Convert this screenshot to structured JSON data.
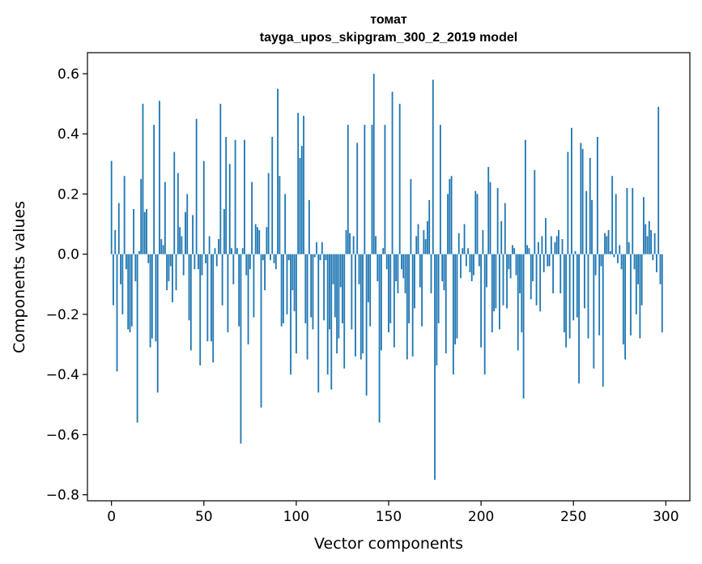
{
  "chart_data": {
    "type": "bar",
    "title": "томат",
    "subtitle": "tayga_upos_skipgram_300_2_2019 model",
    "xlabel": "Vector components",
    "ylabel": "Components values",
    "xlim": [
      -13,
      313
    ],
    "ylim": [
      -0.82,
      0.67
    ],
    "xticks": [
      0,
      50,
      100,
      150,
      200,
      250,
      300
    ],
    "xtick_labels": [
      "0",
      "50",
      "100",
      "150",
      "200",
      "250",
      "300"
    ],
    "yticks": [
      -0.8,
      -0.6,
      -0.4,
      -0.2,
      0.0,
      0.2,
      0.4,
      0.6
    ],
    "ytick_labels": [
      "−0.8",
      "−0.6",
      "−0.4",
      "−0.2",
      "0.0",
      "0.2",
      "0.4",
      "0.6"
    ],
    "bar_color": "#1f77b4",
    "grid": false,
    "legend": "none",
    "values": [
      0.31,
      -0.17,
      0.08,
      -0.39,
      0.17,
      -0.1,
      -0.2,
      0.26,
      -0.05,
      -0.25,
      -0.26,
      -0.24,
      0.15,
      -0.09,
      -0.56,
      0.01,
      0.25,
      0.5,
      0.14,
      0.15,
      -0.03,
      -0.31,
      -0.28,
      0.43,
      -0.29,
      -0.46,
      0.51,
      0.05,
      0.03,
      0.24,
      -0.12,
      -0.09,
      -0.04,
      -0.16,
      0.34,
      -0.12,
      0.27,
      0.09,
      0.06,
      -0.07,
      0.14,
      0.2,
      -0.22,
      -0.32,
      0.13,
      -0.05,
      0.45,
      -0.05,
      -0.37,
      -0.07,
      0.31,
      -0.03,
      -0.29,
      0.06,
      -0.29,
      -0.36,
      0.02,
      -0.04,
      0.05,
      0.5,
      -0.17,
      0.15,
      0.39,
      -0.26,
      0.3,
      0.02,
      -0.1,
      0.38,
      0.02,
      -0.24,
      -0.63,
      0.02,
      0.38,
      -0.07,
      -0.3,
      -0.05,
      0.24,
      -0.21,
      0.1,
      0.09,
      0.08,
      -0.51,
      -0.02,
      -0.12,
      0.09,
      0.27,
      -0.02,
      0.39,
      -0.03,
      -0.05,
      0.55,
      0.26,
      -0.24,
      -0.23,
      0.2,
      -0.2,
      -0.02,
      -0.4,
      -0.12,
      -0.19,
      -0.33,
      0.47,
      0.32,
      0.36,
      0.46,
      -0.23,
      -0.35,
      0.18,
      -0.21,
      -0.25,
      -0.01,
      0.04,
      -0.46,
      -0.02,
      0.04,
      -0.22,
      -0.02,
      -0.4,
      -0.25,
      -0.45,
      -0.1,
      -0.21,
      -0.33,
      -0.28,
      -0.11,
      -0.23,
      -0.38,
      0.08,
      0.43,
      0.07,
      -0.25,
      0.06,
      -0.34,
      0.37,
      -0.1,
      -0.35,
      -0.33,
      0.43,
      -0.47,
      -0.16,
      -0.24,
      0.43,
      0.6,
      0.06,
      -0.09,
      -0.56,
      -0.32,
      0.02,
      0.43,
      -0.05,
      -0.26,
      -0.23,
      0.54,
      -0.31,
      -0.09,
      -0.13,
      0.5,
      -0.05,
      -0.08,
      -0.13,
      -0.35,
      -0.23,
      0.25,
      -0.34,
      -0.18,
      0.06,
      0.1,
      -0.11,
      -0.24,
      0.08,
      0.05,
      0.11,
      0.18,
      -0.13,
      0.58,
      -0.75,
      -0.37,
      -0.23,
      0.43,
      -0.09,
      -0.12,
      -0.33,
      0.2,
      0.25,
      0.26,
      -0.4,
      -0.3,
      -0.28,
      0.07,
      -0.08,
      0.02,
      0.1,
      -0.04,
      0.02,
      -0.06,
      -0.09,
      -0.07,
      0.21,
      0.2,
      -0.04,
      -0.31,
      0.08,
      -0.4,
      -0.11,
      0.29,
      0.24,
      -0.26,
      -0.19,
      -0.18,
      0.22,
      -0.25,
      0.11,
      -0.17,
      0.17,
      -0.18,
      -0.05,
      -0.08,
      0.03,
      0.02,
      -0.07,
      -0.32,
      -0.13,
      -0.26,
      -0.48,
      0.38,
      0.03,
      0.02,
      -0.15,
      -0.09,
      0.28,
      -0.17,
      0.04,
      -0.19,
      0.06,
      -0.06,
      0.12,
      -0.04,
      -0.04,
      0.06,
      -0.13,
      0.04,
      0.06,
      0.08,
      -0.13,
      0.05,
      -0.26,
      -0.31,
      0.34,
      -0.28,
      0.42,
      -0.22,
      0.01,
      -0.21,
      -0.43,
      0.37,
      0.35,
      -0.18,
      0.21,
      -0.28,
      0.32,
      0.18,
      -0.38,
      -0.07,
      0.39,
      -0.27,
      -0.04,
      -0.44,
      0.07,
      0.06,
      0.08,
      0.01,
      0.26,
      -0.01,
      0.2,
      -0.03,
      0.03,
      -0.05,
      -0.3,
      -0.35,
      0.22,
      0.04,
      -0.27,
      0.22,
      -0.05,
      -0.2,
      -0.1,
      -0.28,
      -0.17,
      0.19,
      0.1,
      0.06,
      0.11,
      0.08,
      -0.02,
      0.07,
      -0.06,
      0.49,
      -0.1,
      -0.26
    ]
  }
}
